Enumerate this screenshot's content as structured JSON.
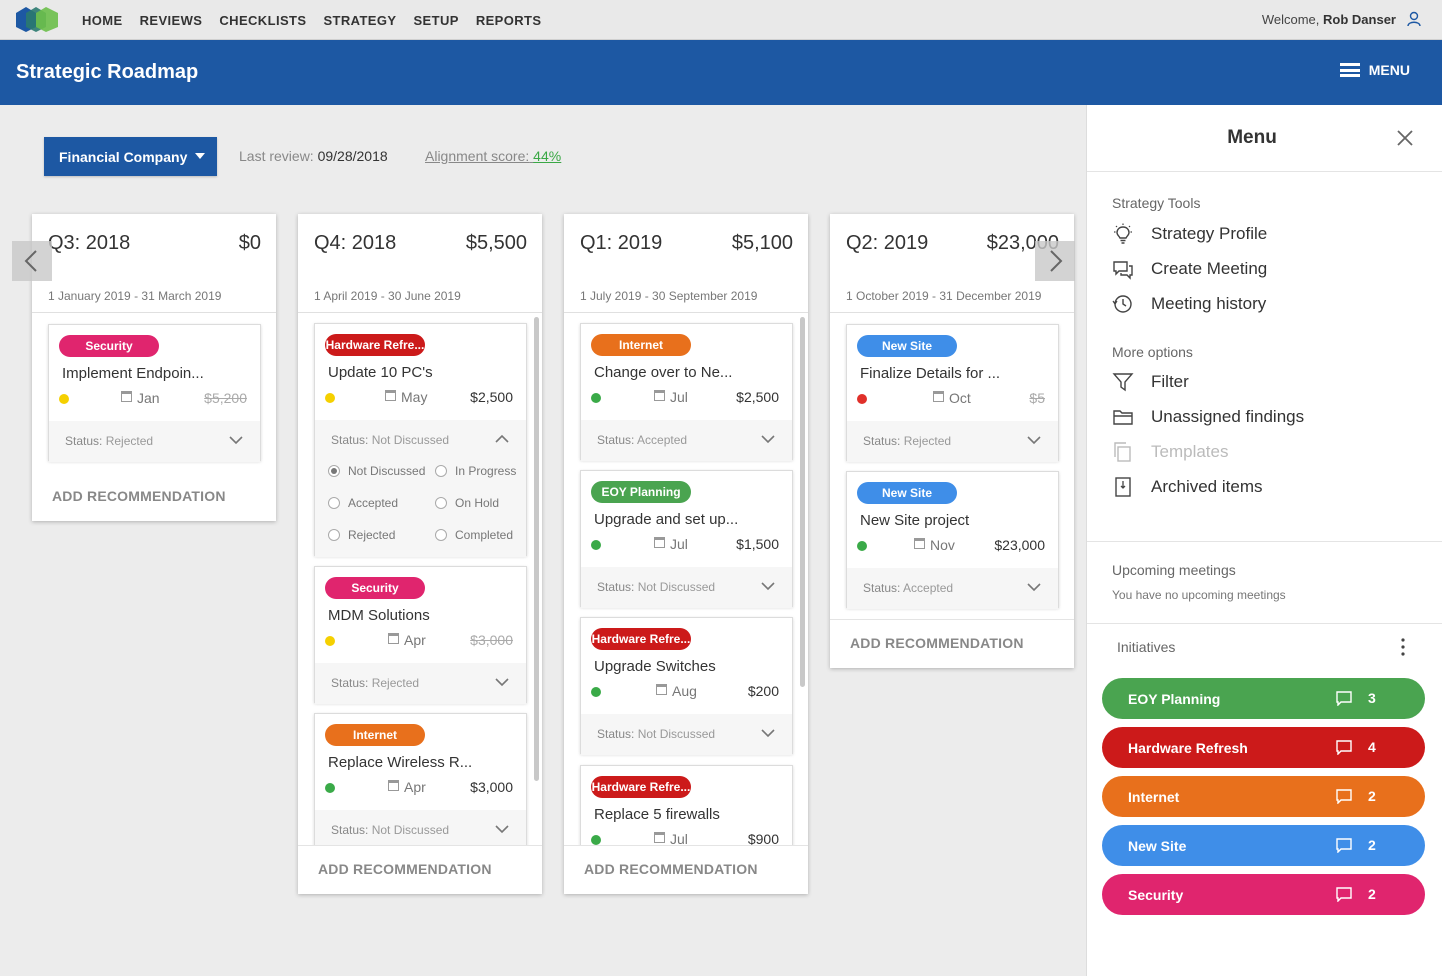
{
  "nav": {
    "links": [
      "HOME",
      "REVIEWS",
      "CHECKLISTS",
      "STRATEGY",
      "SETUP",
      "REPORTS"
    ],
    "welcome_prefix": "Welcome,",
    "user_name": "Rob Danser"
  },
  "header": {
    "title": "Strategic Roadmap",
    "menu_label": "MENU"
  },
  "toolbar": {
    "company": "Financial Company",
    "last_review_label": "Last review:",
    "last_review_date": "09/28/2018",
    "alignment_label": "Alignment score:",
    "alignment_value": "44%"
  },
  "add_recommendation": "ADD RECOMMENDATION",
  "status_prefix": "Status:",
  "columns": [
    {
      "quarter": "Q3: 2018",
      "amount": "$0",
      "dates": "1 January 2019 - 31 March 2019",
      "cards": [
        {
          "tag": "Security",
          "tag_color": "#e0256e",
          "title": "Implement Endpoin...",
          "dot_color": "#f5d000",
          "month": "Jan",
          "cost": "$5,200",
          "status": "Rejected"
        }
      ]
    },
    {
      "quarter": "Q4: 2018",
      "amount": "$5,500",
      "dates": "1 April 2019 - 30 June 2019",
      "cards": [
        {
          "tag": "Hardware Refre...",
          "tag_color": "#cc1a1a",
          "title": "Update 10 PC's",
          "dot_color": "#f5d000",
          "month": "May",
          "cost": "$2,500",
          "status": "Not Discussed",
          "options": [
            "Not Discussed",
            "In Progress",
            "Accepted",
            "On Hold",
            "Rejected",
            "Completed"
          ]
        },
        {
          "tag": "Security",
          "tag_color": "#e0256e",
          "title": "MDM Solutions",
          "dot_color": "#f5d000",
          "month": "Apr",
          "cost": "$3,000",
          "status": "Rejected"
        },
        {
          "tag": "Internet",
          "tag_color": "#e8701c",
          "title": "Replace Wireless R...",
          "dot_color": "#3aaa48",
          "month": "Apr",
          "cost": "$3,000",
          "status": "Not Discussed"
        }
      ]
    },
    {
      "quarter": "Q1: 2019",
      "amount": "$5,100",
      "dates": "1 July 2019 - 30 September 2019",
      "cards": [
        {
          "tag": "Internet",
          "tag_color": "#e8701c",
          "title": "Change over to Ne...",
          "dot_color": "#3aaa48",
          "month": "Jul",
          "cost": "$2,500",
          "status": "Accepted"
        },
        {
          "tag": "EOY Planning",
          "tag_color": "#4aa450",
          "title": "Upgrade and set up...",
          "dot_color": "#3aaa48",
          "month": "Jul",
          "cost": "$1,500",
          "status": "Not Discussed"
        },
        {
          "tag": "Hardware Refre...",
          "tag_color": "#cc1a1a",
          "title": "Upgrade Switches",
          "dot_color": "#3aaa48",
          "month": "Aug",
          "cost": "$200",
          "status": "Not Discussed"
        },
        {
          "tag": "Hardware Refre...",
          "tag_color": "#cc1a1a",
          "title": "Replace 5 firewalls",
          "dot_color": "#3aaa48",
          "month": "Jul",
          "cost": "$900",
          "status": ""
        }
      ]
    },
    {
      "quarter": "Q2: 2019",
      "amount": "$23,000",
      "dates": "1 October 2019 - 31 December 2019",
      "cards": [
        {
          "tag": "New Site",
          "tag_color": "#3f8ee8",
          "title": "Finalize Details for ...",
          "dot_color": "#e0302a",
          "month": "Oct",
          "cost": "$5",
          "status": "Rejected"
        },
        {
          "tag": "New Site",
          "tag_color": "#3f8ee8",
          "title": "New Site project",
          "dot_color": "#3aaa48",
          "month": "Nov",
          "cost": "$23,000",
          "status": "Accepted"
        }
      ]
    }
  ],
  "menu": {
    "title": "Menu",
    "strategy_tools_label": "Strategy Tools",
    "strategy_tools": [
      {
        "label": "Strategy Profile",
        "icon": "lightbulb-icon"
      },
      {
        "label": "Create Meeting",
        "icon": "chat-icon"
      },
      {
        "label": "Meeting history",
        "icon": "history-icon"
      }
    ],
    "more_options_label": "More options",
    "more_options": [
      {
        "label": "Filter",
        "icon": "filter-icon"
      },
      {
        "label": "Unassigned findings",
        "icon": "folder-icon"
      },
      {
        "label": "Templates",
        "icon": "copy-icon"
      },
      {
        "label": "Archived items",
        "icon": "archive-icon"
      }
    ],
    "upcoming_label": "Upcoming meetings",
    "upcoming_empty": "You have no upcoming meetings",
    "initiatives_label": "Initiatives",
    "initiatives": [
      {
        "name": "EOY Planning",
        "count": "3",
        "color": "#4aa450"
      },
      {
        "name": "Hardware Refresh",
        "count": "4",
        "color": "#cc1a1a"
      },
      {
        "name": "Internet",
        "count": "2",
        "color": "#e8701c"
      },
      {
        "name": "New Site",
        "count": "2",
        "color": "#3f8ee8"
      },
      {
        "name": "Security",
        "count": "2",
        "color": "#e0256e"
      }
    ]
  }
}
